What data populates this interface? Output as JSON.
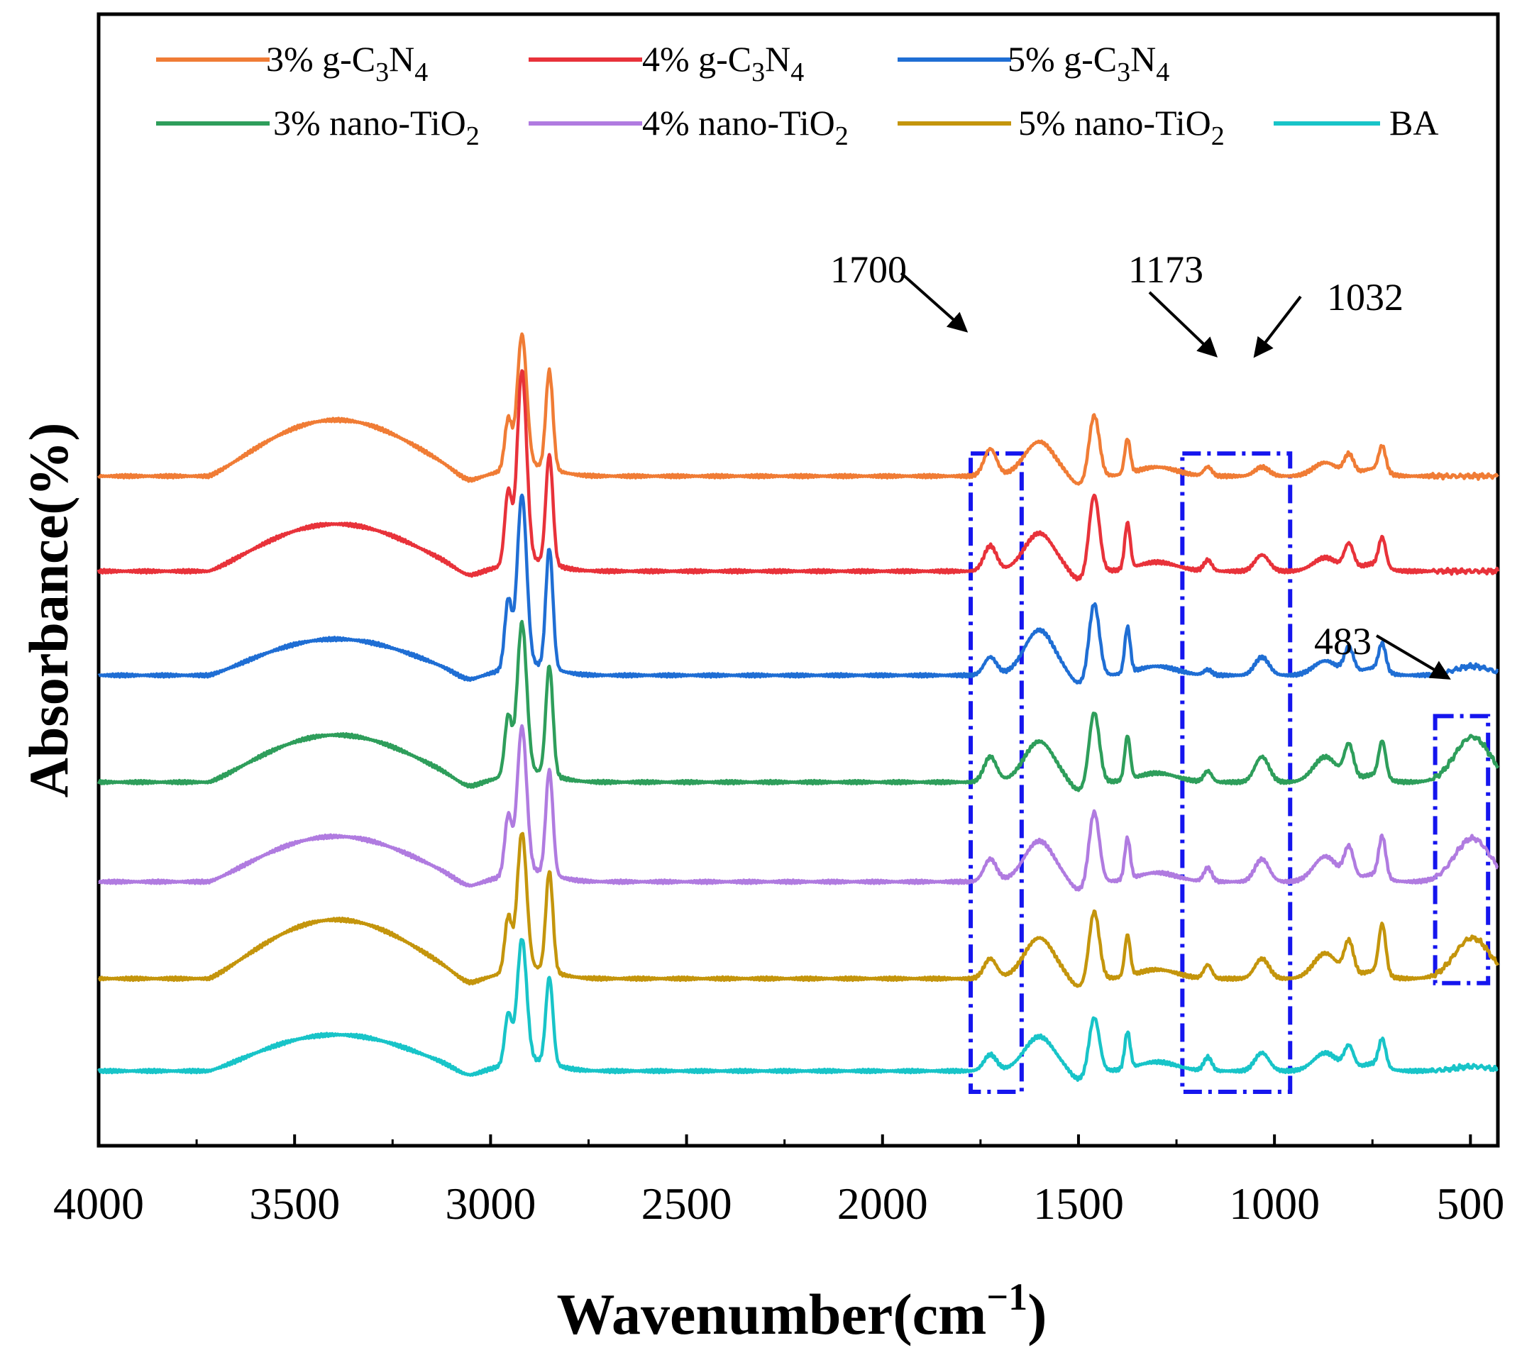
{
  "chart_data": {
    "type": "line",
    "title": "",
    "xlabel": "Wavenumber(cm",
    "xlabel_sup": "−1",
    "xlabel_close": ")",
    "ylabel": "Absorbance(%)",
    "xlim": [
      4000,
      430
    ],
    "x_ticks": [
      4000,
      3500,
      3000,
      2500,
      2000,
      1500,
      1000,
      500
    ],
    "x_tick_labels": [
      "4000",
      "3500",
      "3000",
      "2500",
      "2000",
      "1500",
      "1000",
      "500"
    ],
    "ylim": [
      -0.5,
      10.0
    ],
    "legend_placement": "top",
    "legend": [
      {
        "base": "3% g-C",
        "sub1": "3",
        "mid": "N",
        "sub2": "4",
        "color": "#f07c35"
      },
      {
        "base": "4% g-C",
        "sub1": "3",
        "mid": "N",
        "sub2": "4",
        "color": "#e8323a"
      },
      {
        "base": "5% g-C",
        "sub1": "3",
        "mid": "N",
        "sub2": "4",
        "color": "#1f6ed4"
      },
      {
        "base": "3% nano-TiO",
        "sub1": "2",
        "mid": "",
        "sub2": "",
        "color": "#2e9e5b"
      },
      {
        "base": "4% nano-TiO",
        "sub1": "2",
        "mid": "",
        "sub2": "",
        "color": "#b07be0"
      },
      {
        "base": "5% nano-TiO",
        "sub1": "2",
        "mid": "",
        "sub2": "",
        "color": "#c4950c"
      },
      {
        "base": "BA",
        "sub1": "",
        "mid": "",
        "sub2": "",
        "color": "#18c4c8"
      }
    ],
    "series": [
      {
        "name": "3% g-C3N4",
        "color": "#f07c35",
        "baseline": 6.7,
        "peaks": {
          "oh": 0.62,
          "ch_main": 1.45,
          "ch_second": 1.08,
          "ch_sh": 0.55,
          "p1700": 0.3,
          "p1600": 0.38,
          "p1460": 0.68,
          "p1375": 0.38,
          "p1173": 0.1,
          "p1032": 0.1,
          "p870": 0.15,
          "p810": 0.22,
          "p720": 0.28,
          "p483": 0.0
        },
        "x": [
          3720,
          3400,
          3050,
          2955,
          2920,
          2850,
          1725,
          1600,
          1460,
          1375,
          1173,
          1032,
          810,
          720
        ],
        "y": [
          6.72,
          7.32,
          6.72,
          7.3,
          8.15,
          7.8,
          7.0,
          7.08,
          7.38,
          7.08,
          6.8,
          6.8,
          6.92,
          6.98
        ]
      },
      {
        "name": "4% g-C3N4",
        "color": "#e8323a",
        "baseline": 5.65,
        "peaks": {
          "oh": 0.52,
          "ch_main": 2.1,
          "ch_second": 1.2,
          "ch_sh": 0.8,
          "p1700": 0.28,
          "p1600": 0.42,
          "p1460": 0.85,
          "p1375": 0.5,
          "p1173": 0.12,
          "p1032": 0.18,
          "p870": 0.15,
          "p810": 0.28,
          "p720": 0.32,
          "p483": 0.0
        },
        "x": [
          3720,
          3430,
          3050,
          2955,
          2920,
          2850,
          1725,
          1600,
          1460,
          1375,
          1173,
          1032,
          810,
          720
        ],
        "y": [
          5.67,
          6.17,
          5.67,
          6.45,
          7.75,
          6.85,
          5.93,
          6.07,
          6.5,
          6.15,
          5.77,
          5.83,
          5.93,
          5.97
        ]
      },
      {
        "name": "5% g-C3N4",
        "color": "#1f6ed4",
        "baseline": 4.5,
        "peaks": {
          "oh": 0.4,
          "ch_main": 1.88,
          "ch_second": 1.32,
          "ch_sh": 0.75,
          "p1700": 0.2,
          "p1600": 0.5,
          "p1460": 0.8,
          "p1375": 0.5,
          "p1173": 0.06,
          "p1032": 0.2,
          "p870": 0.16,
          "p810": 0.28,
          "p720": 0.3,
          "p483": 0.1
        },
        "x": [
          3720,
          3400,
          3050,
          2955,
          2920,
          2850,
          1725,
          1600,
          1460,
          1375,
          1173,
          1032,
          810,
          720,
          483
        ],
        "y": [
          4.52,
          4.9,
          4.52,
          5.25,
          6.38,
          5.82,
          4.7,
          5.0,
          5.3,
          5.0,
          4.56,
          4.7,
          4.78,
          4.8,
          4.6
        ]
      },
      {
        "name": "3% nano-TiO2",
        "color": "#2e9e5b",
        "baseline": 3.32,
        "peaks": {
          "oh": 0.52,
          "ch_main": 1.65,
          "ch_second": 1.2,
          "ch_sh": 0.65,
          "p1700": 0.28,
          "p1600": 0.45,
          "p1460": 0.78,
          "p1375": 0.48,
          "p1173": 0.12,
          "p1032": 0.28,
          "p870": 0.28,
          "p810": 0.38,
          "p720": 0.4,
          "p483": 0.5
        },
        "x": [
          3720,
          3400,
          3050,
          2955,
          2920,
          2850,
          1725,
          1600,
          1460,
          1375,
          1173,
          1032,
          810,
          720,
          483
        ],
        "y": [
          3.34,
          3.82,
          3.34,
          3.98,
          4.97,
          4.52,
          3.6,
          3.77,
          4.1,
          3.8,
          3.44,
          3.6,
          3.7,
          3.72,
          3.82
        ]
      },
      {
        "name": "4% nano-TiO2",
        "color": "#b07be0",
        "baseline": 2.22,
        "peaks": {
          "oh": 0.5,
          "ch_main": 1.6,
          "ch_second": 1.15,
          "ch_sh": 0.65,
          "p1700": 0.25,
          "p1600": 0.45,
          "p1460": 0.78,
          "p1375": 0.45,
          "p1173": 0.15,
          "p1032": 0.25,
          "p870": 0.28,
          "p810": 0.35,
          "p720": 0.45,
          "p483": 0.48
        },
        "x": [
          3720,
          3400,
          3050,
          2955,
          2920,
          2850,
          1725,
          1600,
          1460,
          1375,
          1173,
          1032,
          810,
          720,
          483
        ],
        "y": [
          2.24,
          2.72,
          2.24,
          2.87,
          3.82,
          3.37,
          2.47,
          2.67,
          3.0,
          2.67,
          2.37,
          2.47,
          2.57,
          2.67,
          2.7
        ]
      },
      {
        "name": "5% nano-TiO2",
        "color": "#c4950c",
        "baseline": 1.15,
        "peaks": {
          "oh": 0.65,
          "ch_main": 1.5,
          "ch_second": 1.1,
          "ch_sh": 0.6,
          "p1700": 0.22,
          "p1600": 0.45,
          "p1460": 0.75,
          "p1375": 0.45,
          "p1173": 0.15,
          "p1032": 0.22,
          "p870": 0.28,
          "p810": 0.38,
          "p720": 0.55,
          "p483": 0.45
        },
        "x": [
          3720,
          3400,
          3050,
          2955,
          2920,
          2850,
          1725,
          1600,
          1460,
          1375,
          1173,
          1032,
          810,
          720,
          483
        ],
        "y": [
          1.17,
          1.8,
          1.17,
          1.75,
          2.65,
          2.25,
          1.37,
          1.6,
          1.9,
          1.6,
          1.3,
          1.37,
          1.53,
          1.7,
          1.6
        ]
      },
      {
        "name": "BA",
        "color": "#18c4c8",
        "baseline": 0.13,
        "peaks": {
          "oh": 0.4,
          "ch_main": 1.35,
          "ch_second": 0.95,
          "ch_sh": 0.55,
          "p1700": 0.18,
          "p1600": 0.38,
          "p1460": 0.6,
          "p1375": 0.4,
          "p1173": 0.15,
          "p1032": 0.2,
          "p870": 0.2,
          "p810": 0.25,
          "p720": 0.3,
          "p483": 0.05
        },
        "x": [
          3720,
          3400,
          3050,
          2955,
          2920,
          2850,
          1725,
          1600,
          1460,
          1375,
          1173,
          1032,
          810,
          720,
          483
        ],
        "y": [
          0.15,
          0.53,
          0.15,
          0.68,
          1.48,
          1.08,
          0.31,
          0.51,
          0.73,
          0.53,
          0.28,
          0.33,
          0.38,
          0.43,
          0.18
        ]
      }
    ],
    "annotations": [
      {
        "text": "1700",
        "target_x": 1700
      },
      {
        "text": "1173",
        "target_x": 1173
      },
      {
        "text": "1032",
        "target_x": 1032
      },
      {
        "text": "483",
        "target_x": 483
      }
    ],
    "highlight_regions": [
      {
        "name": "region-1700",
        "x_range": [
          1775,
          1645
        ],
        "y_range": [
          -0.1,
          6.95
        ]
      },
      {
        "name": "region-1173-1032",
        "x_range": [
          1235,
          960
        ],
        "y_range": [
          -0.1,
          6.95
        ]
      },
      {
        "name": "region-483",
        "x_range": [
          590,
          455
        ],
        "y_range": [
          1.1,
          4.05
        ]
      }
    ]
  }
}
